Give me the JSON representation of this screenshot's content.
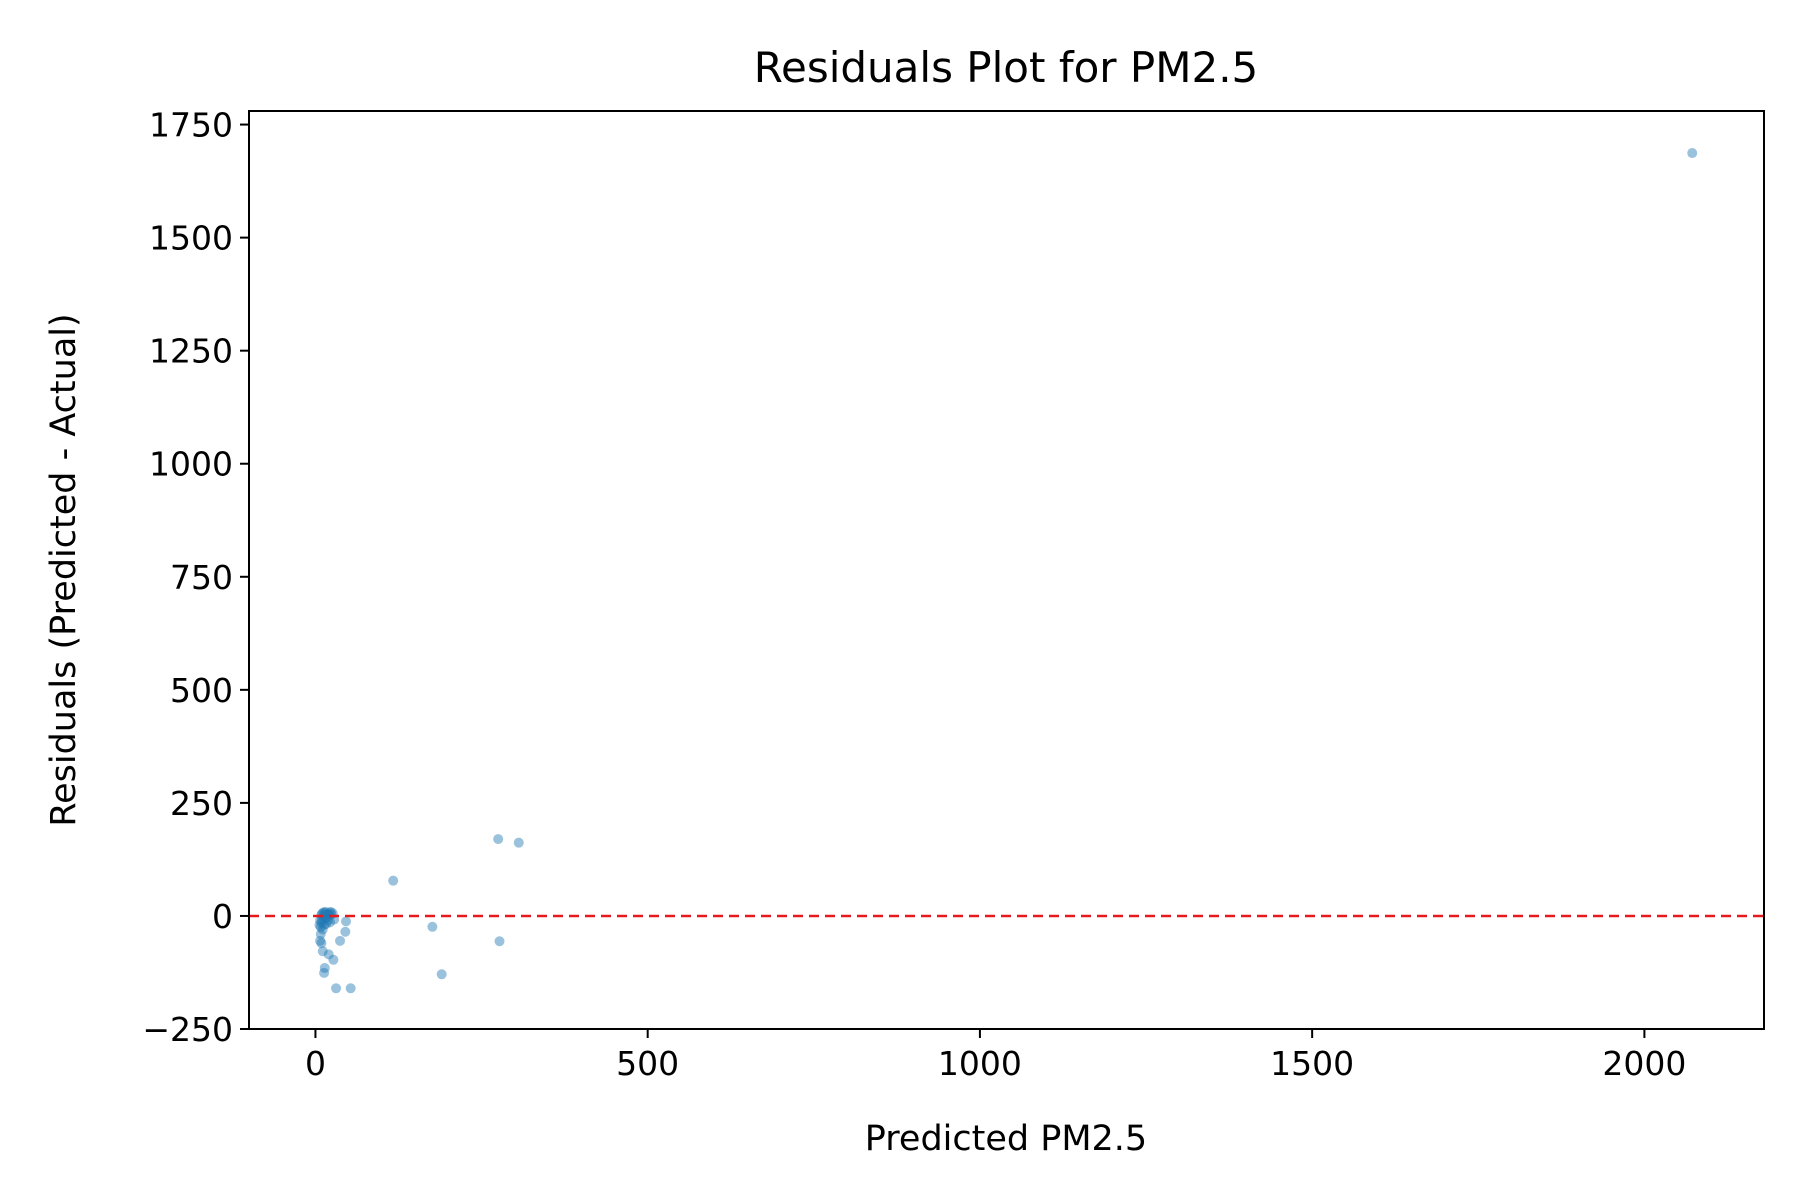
{
  "chart_data": {
    "type": "scatter",
    "title": "Residuals Plot for PM2.5",
    "xlabel": "Predicted PM2.5",
    "ylabel": "Residuals (Predicted - Actual)",
    "xlim": [
      -100,
      2180
    ],
    "ylim": [
      -250,
      1780
    ],
    "xticks": [
      0,
      500,
      1000,
      1500,
      2000
    ],
    "xtick_labels": [
      "0",
      "500",
      "1000",
      "1500",
      "2000"
    ],
    "yticks": [
      -250,
      0,
      250,
      500,
      750,
      1000,
      1250,
      1500,
      1750
    ],
    "ytick_labels": [
      "−250",
      "0",
      "250",
      "500",
      "750",
      "1000",
      "1250",
      "1500",
      "1750"
    ],
    "grid": false,
    "point_color": "#1f77b4",
    "reference_line": {
      "y": 0,
      "color": "#e41a1c",
      "style": "dashed"
    },
    "points": [
      {
        "x": 2072,
        "y": 1687
      },
      {
        "x": 275,
        "y": 170
      },
      {
        "x": 306,
        "y": 162
      },
      {
        "x": 117,
        "y": 78
      },
      {
        "x": 176,
        "y": -24
      },
      {
        "x": 277,
        "y": -56
      },
      {
        "x": 190,
        "y": -129
      },
      {
        "x": 53,
        "y": -160
      },
      {
        "x": 31,
        "y": -160
      },
      {
        "x": 13,
        "y": -126
      },
      {
        "x": 14,
        "y": -115
      },
      {
        "x": 27,
        "y": -97
      },
      {
        "x": 20,
        "y": -85
      },
      {
        "x": 11,
        "y": -78
      },
      {
        "x": 37,
        "y": -55
      },
      {
        "x": 45,
        "y": -35
      },
      {
        "x": 46,
        "y": -12
      },
      {
        "x": 9,
        "y": -60
      },
      {
        "x": 7,
        "y": -55
      },
      {
        "x": 8,
        "y": -40
      },
      {
        "x": 8,
        "y": -25
      },
      {
        "x": 9,
        "y": -15
      },
      {
        "x": 10,
        "y": -8
      },
      {
        "x": 10,
        "y": 5
      },
      {
        "x": 12,
        "y": 8
      },
      {
        "x": 14,
        "y": 6
      },
      {
        "x": 15,
        "y": -5
      },
      {
        "x": 16,
        "y": -18
      },
      {
        "x": 18,
        "y": 4
      },
      {
        "x": 19,
        "y": -10
      },
      {
        "x": 21,
        "y": 7
      },
      {
        "x": 22,
        "y": -14
      },
      {
        "x": 24,
        "y": 3
      },
      {
        "x": 26,
        "y": 6
      },
      {
        "x": 28,
        "y": -8
      },
      {
        "x": 11,
        "y": -30
      },
      {
        "x": 13,
        "y": -20
      },
      {
        "x": 17,
        "y": -3
      },
      {
        "x": 20,
        "y": 2
      },
      {
        "x": 9,
        "y": 2
      },
      {
        "x": 7,
        "y": -10
      },
      {
        "x": 6,
        "y": -20
      },
      {
        "x": 12,
        "y": -2
      },
      {
        "x": 15,
        "y": 9
      },
      {
        "x": 23,
        "y": 9
      }
    ]
  }
}
